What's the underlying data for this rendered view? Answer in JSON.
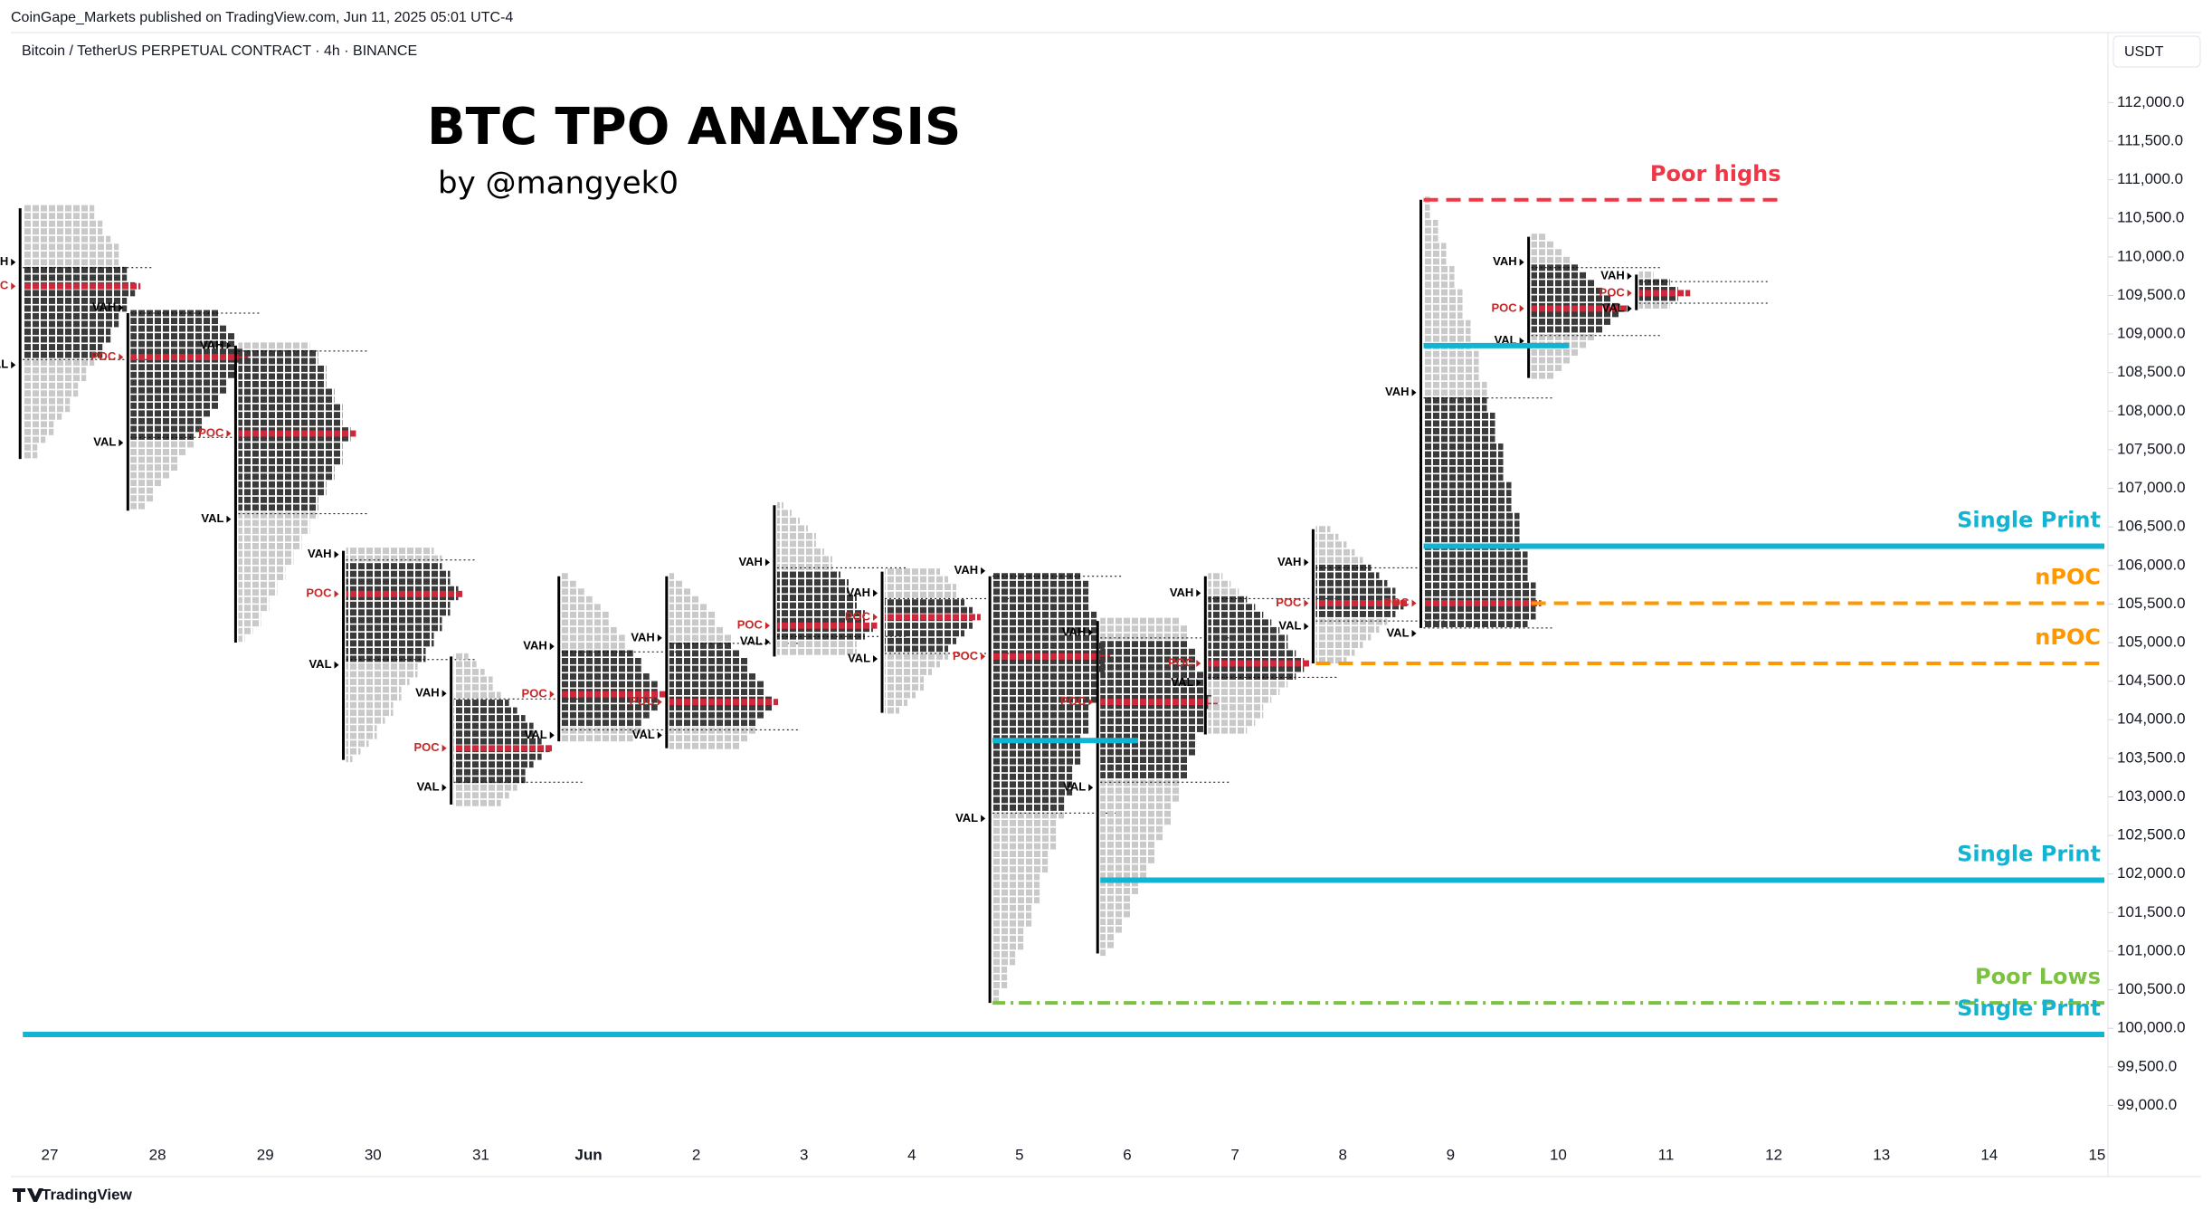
{
  "header": {
    "published": "CoinGape_Markets published on TradingView.com, Jun 11, 2025 05:01 UTC-4",
    "symbol": "Bitcoin / TetherUS PERPETUAL CONTRACT · 4h · BINANCE",
    "currency": "USDT",
    "brand": "TradingView"
  },
  "chart_data": {
    "type": "tpo",
    "title": "BTC TPO ANALYSIS",
    "subtitle": "by @mangyek0",
    "categories": [
      "27",
      "28",
      "29",
      "30",
      "31",
      "Jun",
      "2",
      "3",
      "4",
      "5",
      "6",
      "7",
      "8",
      "9",
      "10",
      "11",
      "12",
      "13",
      "14",
      "15"
    ],
    "ylim": [
      98700,
      112450
    ],
    "yticks": [
      {
        "value": 99000,
        "label": "99,000.0"
      },
      {
        "value": 99500,
        "label": "99,500.0"
      },
      {
        "value": 100000,
        "label": "100,000.0"
      },
      {
        "value": 100500,
        "label": "100,500.0"
      },
      {
        "value": 101000,
        "label": "101,000.0"
      },
      {
        "value": 101500,
        "label": "101,500.0"
      },
      {
        "value": 102000,
        "label": "102,000.0"
      },
      {
        "value": 102500,
        "label": "102,500.0"
      },
      {
        "value": 103000,
        "label": "103,000.0"
      },
      {
        "value": 103500,
        "label": "103,500.0"
      },
      {
        "value": 104000,
        "label": "104,000.0"
      },
      {
        "value": 104500,
        "label": "104,500.0"
      },
      {
        "value": 105000,
        "label": "105,000.0"
      },
      {
        "value": 105500,
        "label": "105,500.0"
      },
      {
        "value": 106000,
        "label": "106,000.0"
      },
      {
        "value": 106500,
        "label": "106,500.0"
      },
      {
        "value": 107000,
        "label": "107,000.0"
      },
      {
        "value": 107500,
        "label": "107,500.0"
      },
      {
        "value": 108000,
        "label": "108,000.0"
      },
      {
        "value": 108500,
        "label": "108,500.0"
      },
      {
        "value": 109000,
        "label": "109,000.0"
      },
      {
        "value": 109500,
        "label": "109,500.0"
      },
      {
        "value": 110000,
        "label": "110,000.0"
      },
      {
        "value": 110500,
        "label": "110,500.0"
      },
      {
        "value": 111000,
        "label": "111,000.0"
      },
      {
        "value": 111500,
        "label": "111,500.0"
      },
      {
        "value": 112000,
        "label": "112,000.0"
      }
    ],
    "level_labels": {
      "vah": "VAH",
      "poc": "POC",
      "val": "VAL"
    },
    "profiles": [
      {
        "high": 110630,
        "low": 107380,
        "vah": 109860,
        "poc": 109620,
        "val": 108670
      },
      {
        "high": 109270,
        "low": 106710,
        "vah": 109270,
        "poc": 108700,
        "val": 107660
      },
      {
        "high": 108850,
        "low": 105000,
        "vah": 108780,
        "poc": 107710,
        "val": 106670
      },
      {
        "high": 106190,
        "low": 103480,
        "vah": 106070,
        "poc": 105630,
        "val": 104780
      },
      {
        "high": 104820,
        "low": 102900,
        "vah": 104270,
        "poc": 103630,
        "val": 103190
      },
      {
        "high": 105860,
        "low": 103720,
        "vah": 104880,
        "poc": 104330,
        "val": 103870
      },
      {
        "high": 105860,
        "low": 103630,
        "vah": 104990,
        "poc": 104230,
        "val": 103870
      },
      {
        "high": 106780,
        "low": 104820,
        "vah": 105970,
        "poc": 105220,
        "val": 105080
      },
      {
        "high": 105920,
        "low": 104090,
        "vah": 105570,
        "poc": 105330,
        "val": 104860
      },
      {
        "high": 105860,
        "low": 100330,
        "vah": 105860,
        "poc": 104820,
        "val": 102790
      },
      {
        "high": 105280,
        "low": 100970,
        "vah": 105060,
        "poc": 104230,
        "val": 103190
      },
      {
        "high": 105860,
        "low": 103810,
        "vah": 105570,
        "poc": 104730,
        "val": 104550
      },
      {
        "high": 106470,
        "low": 104730,
        "vah": 105970,
        "poc": 105510,
        "val": 105280
      },
      {
        "high": 110740,
        "low": 105190,
        "vah": 108170,
        "poc": 105510,
        "val": 105190
      },
      {
        "high": 110260,
        "low": 108430,
        "vah": 109860,
        "poc": 109330,
        "val": 108980
      },
      {
        "high": 109770,
        "low": 109310,
        "vah": 109680,
        "poc": 109530,
        "val": 109400
      }
    ],
    "annotations": [
      {
        "label": "Poor highs",
        "level": 110740,
        "from": "9",
        "to": "12",
        "color": "#f23645",
        "style": "dashed"
      },
      {
        "label": "Single Print",
        "level": 106250,
        "from": "9",
        "color": "#13b4d1",
        "style": "solid"
      },
      {
        "label": "nPOC",
        "level": 105510,
        "from": "10",
        "color": "#ff9800",
        "style": "dashed"
      },
      {
        "label": "nPOC",
        "level": 104730,
        "from": "8",
        "color": "#ff9800",
        "style": "dashed"
      },
      {
        "label": "Single Print",
        "level": 101920,
        "from": "6",
        "color": "#13b4d1",
        "style": "solid"
      },
      {
        "label": "Poor Lows",
        "level": 100330,
        "from": "5",
        "color": "#7cc242",
        "style": "dashdot"
      },
      {
        "label": "Single Print",
        "level": 99920,
        "from": "27",
        "color": "#13b4d1",
        "style": "solid"
      },
      {
        "level": 108850,
        "from": "9",
        "to": "10",
        "color": "#13b4d1",
        "style": "solid"
      },
      {
        "level": 103730,
        "from": "5",
        "to": "6",
        "color": "#13b4d1",
        "style": "solid"
      }
    ]
  }
}
